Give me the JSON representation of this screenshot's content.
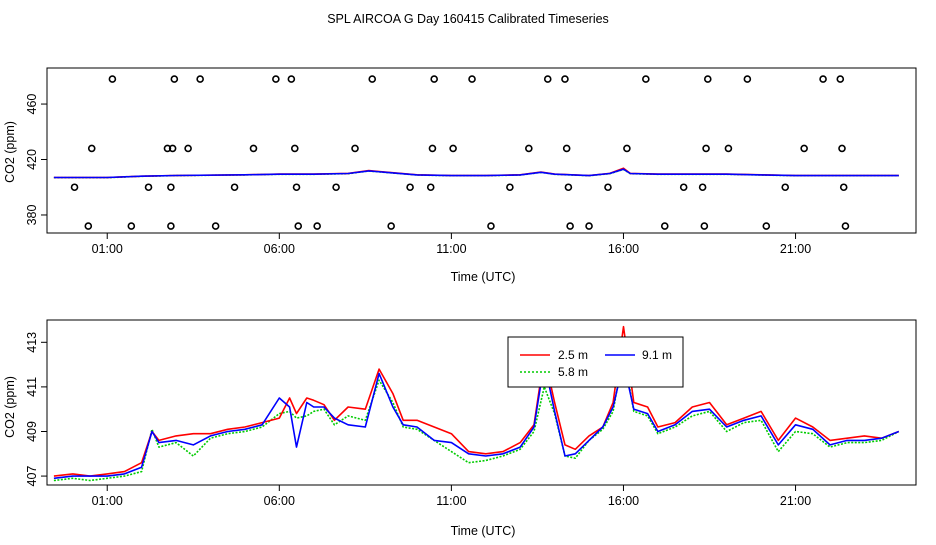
{
  "figure": {
    "title": "SPL AIRCOA G  Day 160415  Calibrated Timeseries"
  },
  "chart_data": [
    {
      "type": "line",
      "title": "",
      "xlabel": "Time (UTC)",
      "ylabel": "CO2 (ppm)",
      "xlim_hours": [
        -0.75,
        24.5
      ],
      "ylim": [
        367,
        486
      ],
      "x_ticks": [
        {
          "h": 1,
          "label": "01:00"
        },
        {
          "h": 6,
          "label": "06:00"
        },
        {
          "h": 11,
          "label": "11:00"
        },
        {
          "h": 16,
          "label": "16:00"
        },
        {
          "h": 21,
          "label": "21:00"
        }
      ],
      "y_ticks": [
        {
          "v": 380,
          "label": "380"
        },
        {
          "v": 420,
          "label": "420"
        },
        {
          "v": 460,
          "label": "460"
        }
      ],
      "scatter": {
        "name": "calibration",
        "points": [
          [
            0.45,
            372
          ],
          [
            0.05,
            400
          ],
          [
            0.55,
            428
          ],
          [
            1.15,
            478
          ],
          [
            1.7,
            372
          ],
          [
            2.2,
            400
          ],
          [
            2.75,
            428
          ],
          [
            2.85,
            372
          ],
          [
            2.85,
            400
          ],
          [
            2.9,
            428
          ],
          [
            2.95,
            478
          ],
          [
            3.35,
            428
          ],
          [
            3.7,
            478
          ],
          [
            4.15,
            372
          ],
          [
            4.7,
            400
          ],
          [
            5.25,
            428
          ],
          [
            5.9,
            478
          ],
          [
            6.35,
            478
          ],
          [
            6.45,
            428
          ],
          [
            6.5,
            400
          ],
          [
            6.55,
            372
          ],
          [
            7.1,
            372
          ],
          [
            7.65,
            400
          ],
          [
            8.2,
            428
          ],
          [
            8.7,
            478
          ],
          [
            9.25,
            372
          ],
          [
            9.8,
            400
          ],
          [
            10.4,
            400
          ],
          [
            10.45,
            428
          ],
          [
            10.5,
            478
          ],
          [
            11.05,
            428
          ],
          [
            11.6,
            478
          ],
          [
            12.15,
            372
          ],
          [
            12.7,
            400
          ],
          [
            13.25,
            428
          ],
          [
            13.8,
            478
          ],
          [
            14.3,
            478
          ],
          [
            14.35,
            428
          ],
          [
            14.4,
            400
          ],
          [
            14.45,
            372
          ],
          [
            15.0,
            372
          ],
          [
            15.55,
            400
          ],
          [
            16.1,
            428
          ],
          [
            16.65,
            478
          ],
          [
            17.2,
            372
          ],
          [
            17.75,
            400
          ],
          [
            18.3,
            400
          ],
          [
            18.35,
            372
          ],
          [
            18.4,
            428
          ],
          [
            18.45,
            478
          ],
          [
            19.05,
            428
          ],
          [
            19.6,
            478
          ],
          [
            20.15,
            372
          ],
          [
            20.7,
            400
          ],
          [
            21.25,
            428
          ],
          [
            21.8,
            478
          ],
          [
            22.3,
            478
          ],
          [
            22.35,
            428
          ],
          [
            22.4,
            400
          ],
          [
            22.45,
            372
          ]
        ]
      },
      "series": [
        {
          "name": "2.5 m",
          "color": "#ff0000",
          "dash": "solid",
          "x": [
            -0.55,
            1.0,
            2.0,
            3.0,
            5.0,
            6.0,
            7.0,
            8.0,
            8.6,
            10.0,
            11.0,
            12.0,
            13.0,
            13.6,
            14.0,
            15.0,
            15.6,
            16.0,
            16.2,
            17.0,
            18.0,
            19.0,
            20.0,
            21.0,
            22.0,
            23.0,
            24.0
          ],
          "y": [
            407,
            407,
            408,
            408.5,
            409,
            409.5,
            409.5,
            410,
            412,
            409,
            408.5,
            408.5,
            409,
            411,
            409.5,
            408.5,
            410,
            413.7,
            410,
            409.5,
            409.5,
            409.5,
            409,
            408.5,
            408.5,
            408.5,
            408.5
          ]
        },
        {
          "name": "5.8 m",
          "color": "#00cc00",
          "dash": "dotted",
          "x": [
            -0.55,
            1.0,
            2.0,
            3.0,
            5.0,
            6.0,
            7.0,
            8.0,
            8.6,
            10.0,
            11.0,
            12.0,
            13.0,
            13.6,
            14.0,
            15.0,
            15.6,
            16.0,
            16.2,
            17.0,
            18.0,
            19.0,
            20.0,
            21.0,
            22.0,
            23.0,
            24.0
          ],
          "y": [
            406.9,
            406.9,
            407.9,
            408.4,
            408.9,
            409.3,
            409.3,
            409.8,
            411.7,
            408.8,
            408.3,
            408.3,
            408.8,
            410.7,
            409.3,
            408.3,
            409.8,
            412.9,
            409.8,
            409.3,
            409.3,
            409.3,
            408.8,
            408.3,
            408.3,
            408.3,
            408.3
          ]
        },
        {
          "name": "9.1 m",
          "color": "#0000ff",
          "dash": "solid",
          "x": [
            -0.55,
            1.0,
            2.0,
            3.0,
            5.0,
            6.0,
            7.0,
            8.0,
            8.6,
            10.0,
            11.0,
            12.0,
            13.0,
            13.6,
            14.0,
            15.0,
            15.6,
            16.0,
            16.2,
            17.0,
            18.0,
            19.0,
            20.0,
            21.0,
            22.0,
            23.0,
            24.0
          ],
          "y": [
            407,
            407,
            408,
            408.5,
            409,
            409.4,
            409.4,
            409.9,
            411.8,
            408.9,
            408.4,
            408.4,
            408.9,
            410.8,
            409.4,
            408.4,
            409.9,
            413.0,
            409.9,
            409.4,
            409.4,
            409.4,
            408.9,
            408.4,
            408.4,
            408.4,
            408.4
          ]
        }
      ]
    },
    {
      "type": "line",
      "title": "",
      "xlabel": "Time (UTC)",
      "ylabel": "CO2 (ppm)",
      "xlim_hours": [
        -0.75,
        24.5
      ],
      "ylim": [
        406.6,
        414.0
      ],
      "x_ticks": [
        {
          "h": 1,
          "label": "01:00"
        },
        {
          "h": 6,
          "label": "06:00"
        },
        {
          "h": 11,
          "label": "11:00"
        },
        {
          "h": 16,
          "label": "16:00"
        },
        {
          "h": 21,
          "label": "21:00"
        }
      ],
      "y_ticks": [
        {
          "v": 407,
          "label": "407"
        },
        {
          "v": 409,
          "label": "409"
        },
        {
          "v": 411,
          "label": "411"
        },
        {
          "v": 413,
          "label": "413"
        }
      ],
      "legend": {
        "placement": "top-center",
        "entries": [
          {
            "name": "2.5 m",
            "color": "#ff0000",
            "dash": "solid"
          },
          {
            "name": "9.1 m",
            "color": "#0000ff",
            "dash": "solid"
          },
          {
            "name": "5.8 m",
            "color": "#00cc00",
            "dash": "dotted"
          }
        ]
      },
      "series": [
        {
          "name": "2.5 m",
          "color": "#ff0000",
          "dash": "solid",
          "x": [
            -0.55,
            0.0,
            0.5,
            1.0,
            1.5,
            2.0,
            2.3,
            2.5,
            3.0,
            3.5,
            4.0,
            4.5,
            5.0,
            5.5,
            6.0,
            6.3,
            6.5,
            6.8,
            7.0,
            7.3,
            7.6,
            8.0,
            8.5,
            8.9,
            9.3,
            9.6,
            10.0,
            10.5,
            11.0,
            11.5,
            12.0,
            12.5,
            13.0,
            13.4,
            13.7,
            14.0,
            14.3,
            14.6,
            15.0,
            15.4,
            15.7,
            16.0,
            16.3,
            16.7,
            17.0,
            17.5,
            18.0,
            18.5,
            19.0,
            19.5,
            20.0,
            20.5,
            21.0,
            21.5,
            22.0,
            22.5,
            23.0,
            23.5,
            24.0
          ],
          "y": [
            407.0,
            407.1,
            407.0,
            407.1,
            407.2,
            407.6,
            409.0,
            408.6,
            408.8,
            408.9,
            408.9,
            409.1,
            409.2,
            409.4,
            409.6,
            410.5,
            409.8,
            410.5,
            410.4,
            410.2,
            409.5,
            410.1,
            410.0,
            411.8,
            410.7,
            409.5,
            409.5,
            409.2,
            408.9,
            408.1,
            408.0,
            408.1,
            408.5,
            409.3,
            412.4,
            410.3,
            408.4,
            408.2,
            408.8,
            409.2,
            410.3,
            413.7,
            410.3,
            410.1,
            409.2,
            409.4,
            410.1,
            410.3,
            409.3,
            409.6,
            409.9,
            408.6,
            409.6,
            409.2,
            408.6,
            408.7,
            408.8,
            408.7,
            409.0
          ]
        },
        {
          "name": "5.8 m",
          "color": "#00cc00",
          "dash": "dotted",
          "x": [
            -0.55,
            0.0,
            0.5,
            1.0,
            1.5,
            2.0,
            2.3,
            2.5,
            3.0,
            3.5,
            4.0,
            4.5,
            5.0,
            5.5,
            6.0,
            6.3,
            6.5,
            6.8,
            7.0,
            7.3,
            7.6,
            8.0,
            8.5,
            8.9,
            9.3,
            9.6,
            10.0,
            10.5,
            11.0,
            11.5,
            12.0,
            12.5,
            13.0,
            13.4,
            13.7,
            14.0,
            14.3,
            14.6,
            15.0,
            15.4,
            15.7,
            16.0,
            16.3,
            16.7,
            17.0,
            17.5,
            18.0,
            18.5,
            19.0,
            19.5,
            20.0,
            20.5,
            21.0,
            21.5,
            22.0,
            22.5,
            23.0,
            23.5,
            24.0
          ],
          "y": [
            406.8,
            406.9,
            406.8,
            406.9,
            407.0,
            407.2,
            409.1,
            408.3,
            408.5,
            407.9,
            408.7,
            408.9,
            409.0,
            409.2,
            409.8,
            409.9,
            409.6,
            409.7,
            409.9,
            410.0,
            409.3,
            409.7,
            409.5,
            411.3,
            410.3,
            409.2,
            409.1,
            408.6,
            408.1,
            407.6,
            407.7,
            407.9,
            408.2,
            409.0,
            411.0,
            409.8,
            407.9,
            407.8,
            408.6,
            409.1,
            409.9,
            412.5,
            409.9,
            409.7,
            408.9,
            409.2,
            409.7,
            409.9,
            409.0,
            409.4,
            409.5,
            408.1,
            409.0,
            408.9,
            408.3,
            408.5,
            408.5,
            408.6,
            409.0
          ]
        },
        {
          "name": "9.1 m",
          "color": "#0000ff",
          "dash": "solid",
          "x": [
            -0.55,
            0.0,
            0.5,
            1.0,
            1.5,
            2.0,
            2.3,
            2.5,
            3.0,
            3.5,
            4.0,
            4.5,
            5.0,
            5.5,
            6.0,
            6.3,
            6.5,
            6.8,
            7.0,
            7.3,
            7.6,
            8.0,
            8.5,
            8.9,
            9.3,
            9.6,
            10.0,
            10.5,
            11.0,
            11.5,
            12.0,
            12.5,
            13.0,
            13.4,
            13.7,
            14.0,
            14.3,
            14.6,
            15.0,
            15.4,
            15.7,
            16.0,
            16.3,
            16.7,
            17.0,
            17.5,
            18.0,
            18.5,
            19.0,
            19.5,
            20.0,
            20.5,
            21.0,
            21.5,
            22.0,
            22.5,
            23.0,
            23.5,
            24.0
          ],
          "y": [
            406.9,
            407.0,
            407.0,
            407.0,
            407.1,
            407.4,
            409.0,
            408.5,
            408.6,
            408.4,
            408.8,
            409.0,
            409.1,
            409.3,
            410.5,
            410.1,
            408.3,
            410.3,
            410.1,
            410.1,
            409.6,
            409.3,
            409.2,
            411.6,
            410.1,
            409.3,
            409.2,
            408.6,
            408.5,
            408.0,
            407.9,
            408.0,
            408.3,
            409.2,
            412.1,
            409.9,
            407.9,
            408.0,
            408.6,
            409.2,
            410.1,
            412.1,
            410.0,
            409.8,
            409.0,
            409.3,
            409.9,
            410.0,
            409.2,
            409.5,
            409.7,
            408.4,
            409.3,
            409.1,
            408.4,
            408.6,
            408.6,
            408.7,
            409.0
          ]
        }
      ]
    }
  ]
}
